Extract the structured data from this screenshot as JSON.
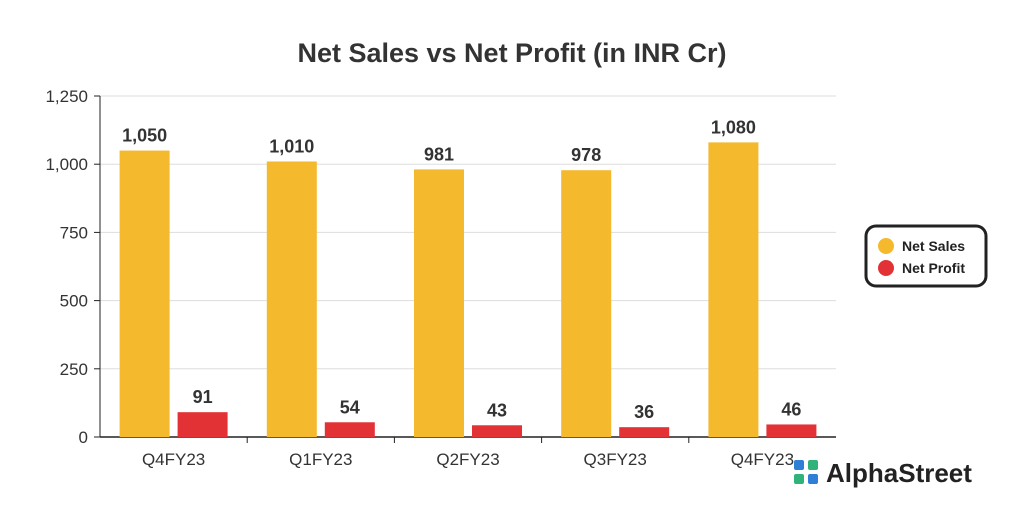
{
  "colors": {
    "net_sales": "#f4b92d",
    "net_profit": "#e23236",
    "grid": "#dddddd",
    "axis": "#222222",
    "text": "#333333",
    "logo_green": "#2fb37a",
    "logo_blue": "#2f7fd6"
  },
  "chart_data": {
    "type": "bar",
    "title": "Net Sales vs Net Profit (in INR Cr)",
    "xlabel": "",
    "ylabel": "",
    "categories": [
      "Q4FY23",
      "Q1FY23",
      "Q2FY23",
      "Q3FY23",
      "Q4FY23"
    ],
    "series": [
      {
        "name": "Net Sales",
        "values": [
          1050,
          1010,
          981,
          978,
          1080
        ],
        "labels": [
          "1,050",
          "1,010",
          "981",
          "978",
          "1,080"
        ]
      },
      {
        "name": "Net Profit",
        "values": [
          91,
          54,
          43,
          36,
          46
        ],
        "labels": [
          "91",
          "54",
          "43",
          "36",
          "46"
        ]
      }
    ],
    "ylim": [
      0,
      1250
    ],
    "yticks": [
      0,
      250,
      500,
      750,
      1000,
      1250
    ],
    "ytick_labels": [
      "0",
      "250",
      "500",
      "750",
      "1,000",
      "1,250"
    ],
    "grid": true,
    "legend_position": "right"
  },
  "brand": {
    "name": "AlphaStreet",
    "icon": "alphastreet-logo-icon"
  }
}
